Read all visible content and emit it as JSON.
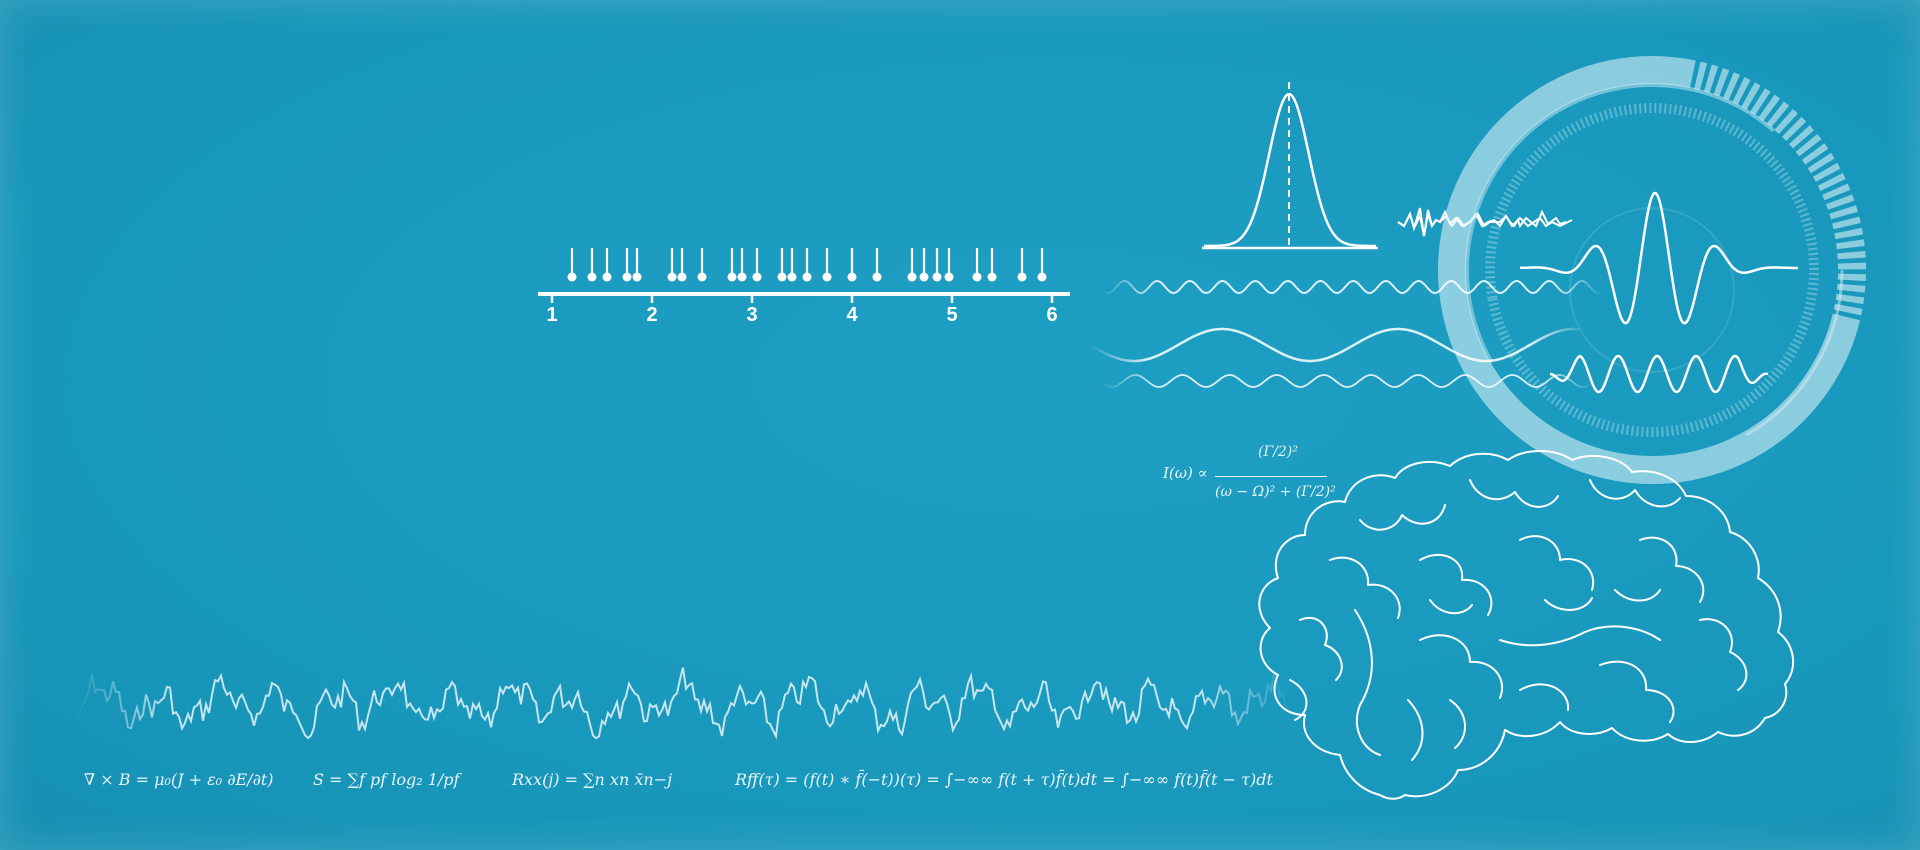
{
  "spike_raster": {
    "tick_labels": [
      "1",
      "2",
      "3",
      "4",
      "5",
      "6"
    ],
    "spike_times": [
      1.2,
      1.4,
      1.55,
      1.75,
      1.85,
      2.2,
      2.3,
      2.5,
      2.8,
      2.9,
      3.05,
      3.3,
      3.4,
      3.55,
      3.75,
      4.0,
      4.25,
      4.6,
      4.72,
      4.85,
      4.97,
      5.25,
      5.4,
      5.7,
      5.9
    ]
  },
  "equations": {
    "maxwell": "∇ × B = μ₀(J + ε₀ ∂E/∂t)",
    "entropy": "S = ∑f pf log₂ 1/pf",
    "autocorr": "Rxx(j) = ∑n xn x̄n−j",
    "convolution": "Rff(τ) = (f(t) ∗ f̄(−t))(τ) = ∫−∞∞ f(t + τ)f̄(t)dt = ∫−∞∞ f(t)f̄(t − τ)dt",
    "lorentzian_lhs": "I(ω) ∝",
    "lorentzian_num": "(Γ/2)²",
    "lorentzian_den": "(ω − Ω)² + (Γ/2)²"
  },
  "icons": [
    "gaussian-curve-icon",
    "ecg-trace-icon",
    "wavelet-icon",
    "brain-outline-icon",
    "eeg-signal-icon"
  ],
  "colors": {
    "background": "#1a9bbf",
    "line": "#ffffff"
  }
}
